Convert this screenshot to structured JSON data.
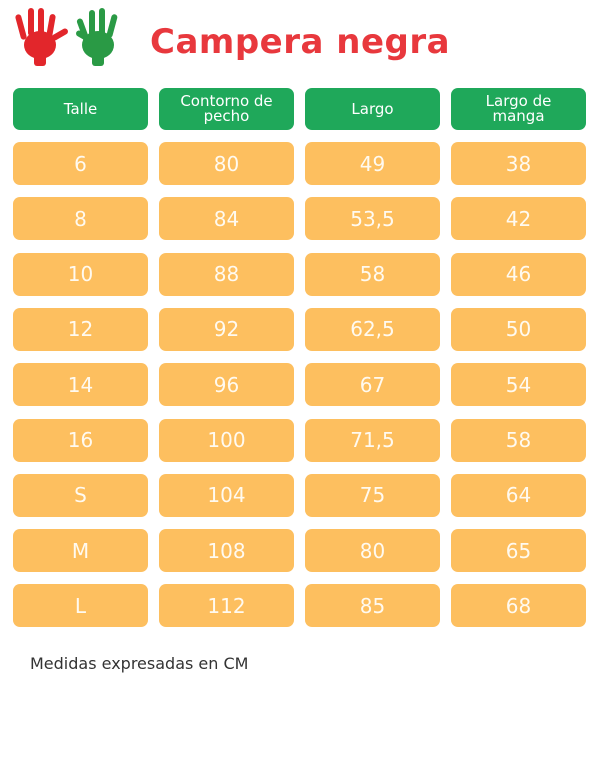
{
  "header": {
    "title": "Campera negra"
  },
  "table": {
    "columns": [
      "Talle",
      "Contorno de pecho",
      "Largo",
      "Largo de manga"
    ],
    "rows": [
      [
        "6",
        "80",
        "49",
        "38"
      ],
      [
        "8",
        "84",
        "53,5",
        "42"
      ],
      [
        "10",
        "88",
        "58",
        "46"
      ],
      [
        "12",
        "92",
        "62,5",
        "50"
      ],
      [
        "14",
        "96",
        "67",
        "54"
      ],
      [
        "16",
        "100",
        "71,5",
        "58"
      ],
      [
        "S",
        "104",
        "75",
        "64"
      ],
      [
        "M",
        "108",
        "80",
        "65"
      ],
      [
        "L",
        "112",
        "85",
        "68"
      ]
    ]
  },
  "footer": {
    "note": "Medidas expresadas en CM"
  }
}
